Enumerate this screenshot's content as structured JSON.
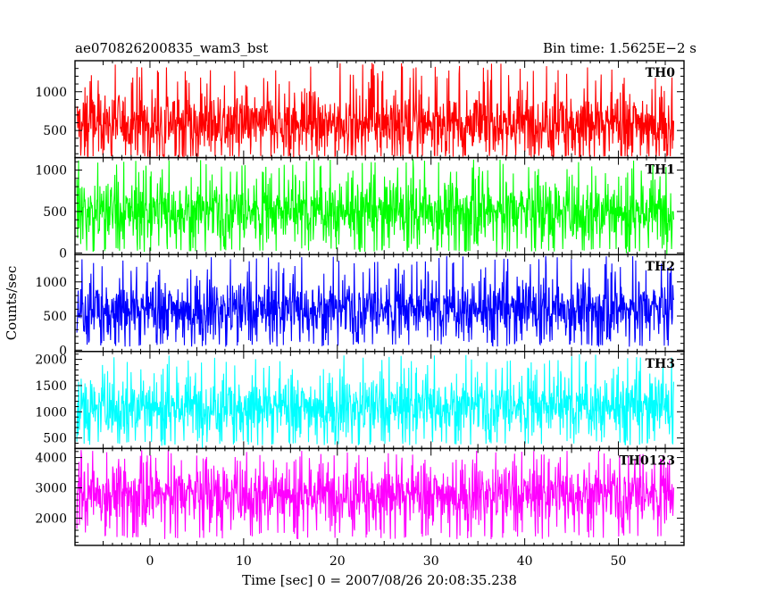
{
  "chart_data": {
    "type": "line",
    "title_left": "ae070826200835_wam3_bst",
    "title_right": "Bin time: 1.5625E−2 s",
    "xlabel": "Time [sec] 0 = 2007/08/26 20:08:35.238",
    "ylabel": "Counts/sec",
    "xlim": [
      -8,
      57
    ],
    "x_ticks": [
      "0",
      "10",
      "20",
      "30",
      "40",
      "50"
    ],
    "x_data_range": [
      -7.8,
      55.9
    ],
    "panels": [
      {
        "name": "TH0",
        "color": "#ff0000",
        "ylim": [
          150,
          1400
        ],
        "y_ticks": [
          "500",
          "1000"
        ],
        "band": {
          "low": 180,
          "center": 600,
          "high": 1100,
          "peak": 1380
        }
      },
      {
        "name": "TH1",
        "color": "#00ff00",
        "ylim": [
          -20,
          1150
        ],
        "y_ticks": [
          "0",
          "500",
          "1000"
        ],
        "band": {
          "low": 60,
          "center": 500,
          "high": 900,
          "peak": 1130
        }
      },
      {
        "name": "TH2",
        "color": "#0000ff",
        "ylim": [
          -20,
          1400
        ],
        "y_ticks": [
          "0",
          "500",
          "1000"
        ],
        "band": {
          "low": 150,
          "center": 600,
          "high": 1100,
          "peak": 1380
        }
      },
      {
        "name": "TH3",
        "color": "#00ffff",
        "ylim": [
          300,
          2150
        ],
        "y_ticks": [
          "500",
          "1000",
          "1500",
          "2000"
        ],
        "band": {
          "low": 450,
          "center": 1100,
          "high": 1700,
          "peak": 2100
        }
      },
      {
        "name": "TH0123",
        "color": "#ff00ff",
        "ylim": [
          1100,
          4300
        ],
        "y_ticks": [
          "2000",
          "3000",
          "4000"
        ],
        "band": {
          "low": 1600,
          "center": 2800,
          "high": 3800,
          "peak": 4250
        }
      }
    ]
  }
}
